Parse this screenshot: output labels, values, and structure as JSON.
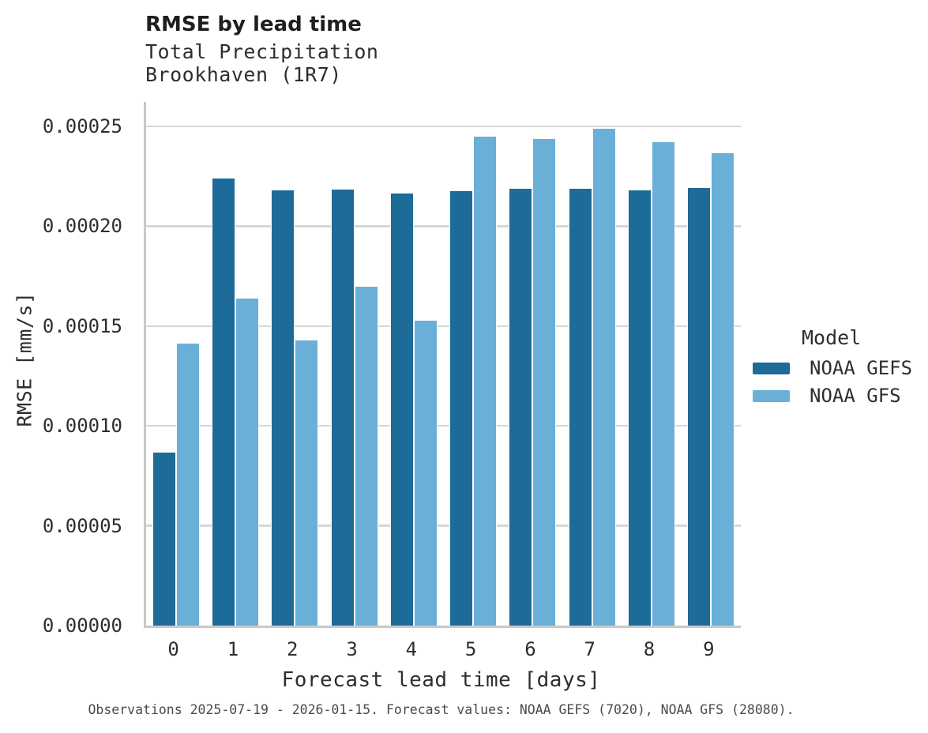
{
  "figure": {
    "title": "RMSE by lead time",
    "subtitle_line1": "Total Precipitation",
    "subtitle_line2": "Brookhaven (1R7)",
    "footer": "Observations 2025-07-19 - 2026-01-15. Forecast values: NOAA GEFS (7020), NOAA GFS (28080)."
  },
  "legend": {
    "title": "Model",
    "items": [
      {
        "label": "NOAA GEFS",
        "color": "#1c6b99"
      },
      {
        "label": "NOAA GFS",
        "color": "#69afd7"
      }
    ]
  },
  "chart_data": {
    "type": "bar",
    "title": "RMSE by lead time",
    "subtitle": [
      "Total Precipitation",
      "Brookhaven (1R7)"
    ],
    "xlabel": "Forecast lead time [days]",
    "ylabel": "RMSE [mm/s]",
    "categories": [
      "0",
      "1",
      "2",
      "3",
      "4",
      "5",
      "6",
      "7",
      "8",
      "9"
    ],
    "series": [
      {
        "name": "NOAA GEFS",
        "color": "#1c6b99",
        "values": [
          8.7e-05,
          0.0002242,
          0.0002183,
          0.0002189,
          0.0002168,
          0.000218,
          0.000219,
          0.0002192,
          0.0002184,
          0.0002197
        ]
      },
      {
        "name": "NOAA GFS",
        "color": "#69afd7",
        "values": [
          0.0001415,
          0.000164,
          0.0001433,
          0.0001702,
          0.0001531,
          0.0002453,
          0.0002441,
          0.0002491,
          0.0002424,
          0.000237
        ]
      }
    ],
    "ylim": [
      0,
      0.00026
    ],
    "yticks": [
      0,
      5e-05,
      0.0001,
      0.00015,
      0.0002,
      0.00025
    ],
    "ytick_labels": [
      "0.00000",
      "0.00005",
      "0.00010",
      "0.00015",
      "0.00020",
      "0.00025"
    ],
    "grid": "horizontal",
    "legend_position": "right",
    "footnote": "Observations 2025-07-19 - 2026-01-15. Forecast values: NOAA GEFS (7020), NOAA GFS (28080)."
  }
}
